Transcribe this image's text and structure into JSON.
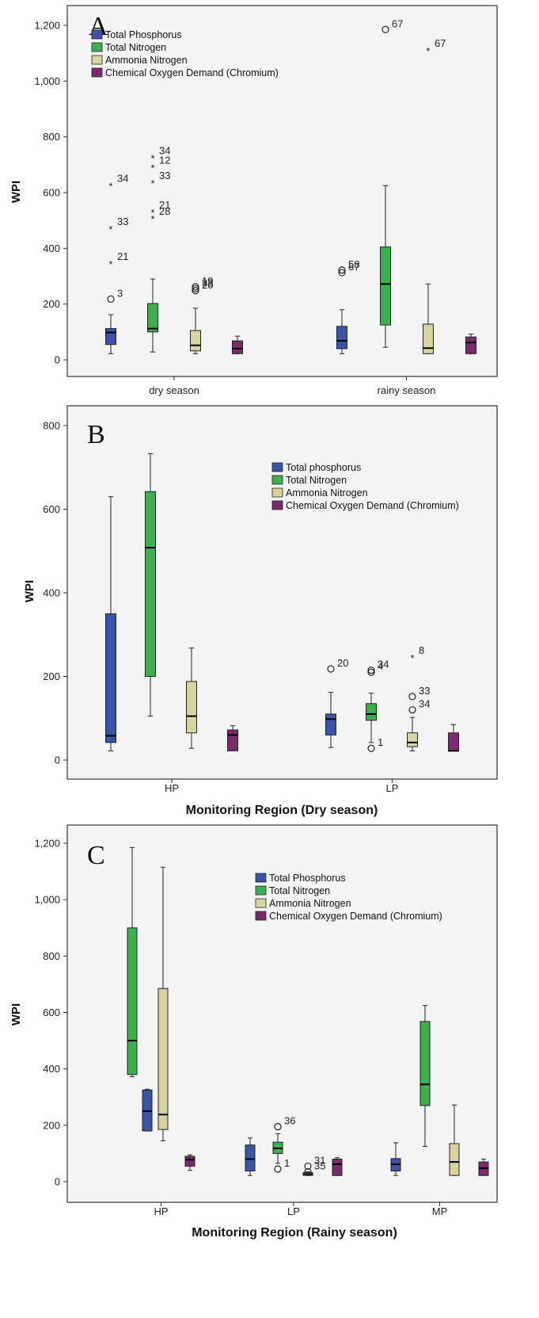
{
  "colors": {
    "total_phosphorus": "#3a55a8",
    "total_nitrogen": "#3cb04a",
    "ammonia_nitrogen": "#d8d4a0",
    "cod_chromium": "#7b2a6e",
    "frame": "#333333",
    "panel_bg": "#f4f4f4"
  },
  "chart_data": [
    {
      "type": "box",
      "panel_letter": "A",
      "xlabel": "",
      "ylabel": "WPI",
      "ylim": [
        -40,
        1240
      ],
      "yticks": [
        0,
        200,
        400,
        600,
        800,
        1000,
        1200
      ],
      "ytick_labels": [
        "0",
        "200",
        "400",
        "600",
        "800",
        "1,000",
        "1,200"
      ],
      "legend_position": "top-left",
      "legend": [
        "Total Phosphorus",
        "Total Nitrogen",
        "Ammonia Nitrogen",
        "Chemical Oxygen Demand (Chromium)"
      ],
      "categories": [
        "dry season",
        "rainy season"
      ],
      "series": [
        {
          "name": "Total Phosphorus",
          "boxes": [
            {
              "min": 22,
              "q1": 55,
              "median": 98,
              "q3": 112,
              "max": 162,
              "outliers": [
                {
                  "y": 218,
                  "label": "3",
                  "marker": "o"
                },
                {
                  "y": 350,
                  "label": "21",
                  "marker": "*"
                },
                {
                  "y": 475,
                  "label": "33",
                  "marker": "*"
                },
                {
                  "y": 630,
                  "label": "34",
                  "marker": "*"
                }
              ]
            },
            {
              "min": 22,
              "q1": 40,
              "median": 68,
              "q3": 120,
              "max": 180,
              "outliers": [
                {
                  "y": 322,
                  "label": "58",
                  "marker": "o"
                },
                {
                  "y": 313,
                  "label": "67",
                  "marker": "o"
                }
              ]
            }
          ]
        },
        {
          "name": "Total Nitrogen",
          "boxes": [
            {
              "min": 28,
              "q1": 100,
              "median": 112,
              "q3": 202,
              "max": 290,
              "outliers": [
                {
                  "y": 512,
                  "label": "28",
                  "marker": "*"
                },
                {
                  "y": 535,
                  "label": "21",
                  "marker": "*"
                },
                {
                  "y": 640,
                  "label": "33",
                  "marker": "*"
                },
                {
                  "y": 695,
                  "label": "12",
                  "marker": "*"
                },
                {
                  "y": 730,
                  "label": "34",
                  "marker": "*"
                }
              ]
            },
            {
              "min": 45,
              "q1": 125,
              "median": 272,
              "q3": 405,
              "max": 625,
              "outliers": [
                {
                  "y": 1185,
                  "label": "67",
                  "marker": "o"
                }
              ]
            }
          ]
        },
        {
          "name": "Ammonia Nitrogen",
          "boxes": [
            {
              "min": 22,
              "q1": 32,
              "median": 52,
              "q3": 105,
              "max": 185,
              "outliers": [
                {
                  "y": 248,
                  "label": "20",
                  "marker": "o"
                },
                {
                  "y": 262,
                  "label": "19",
                  "marker": "o"
                },
                {
                  "y": 255,
                  "label": "33",
                  "marker": "o"
                }
              ]
            },
            {
              "min": 22,
              "q1": 22,
              "median": 42,
              "q3": 128,
              "max": 272,
              "outliers": [
                {
                  "y": 1115,
                  "label": "67",
                  "marker": "*"
                }
              ]
            }
          ]
        },
        {
          "name": "Chemical Oxygen Demand (Chromium)",
          "boxes": [
            {
              "min": 22,
              "q1": 22,
              "median": 40,
              "q3": 68,
              "max": 85,
              "outliers": []
            },
            {
              "min": 22,
              "q1": 22,
              "median": 62,
              "q3": 82,
              "max": 92,
              "outliers": []
            }
          ]
        }
      ]
    },
    {
      "type": "box",
      "panel_letter": "B",
      "xlabel": "Monitoring Region (Dry season)",
      "ylabel": "WPI",
      "ylim": [
        -40,
        840
      ],
      "yticks": [
        0,
        200,
        400,
        600,
        800
      ],
      "ytick_labels": [
        "0",
        "200",
        "400",
        "600",
        "800"
      ],
      "legend_position": "top-right",
      "legend": [
        "Total phosphorus",
        "Total Nitrogen",
        "Ammonia Nitrogen",
        "Chemical Oxygen Demand (Chromium)"
      ],
      "categories": [
        "HP",
        "LP"
      ],
      "series": [
        {
          "name": "Total phosphorus",
          "boxes": [
            {
              "min": 22,
              "q1": 42,
              "median": 58,
              "q3": 350,
              "max": 630,
              "outliers": []
            },
            {
              "min": 30,
              "q1": 60,
              "median": 98,
              "q3": 110,
              "max": 162,
              "outliers": [
                {
                  "y": 218,
                  "label": "20",
                  "marker": "o"
                }
              ]
            }
          ]
        },
        {
          "name": "Total Nitrogen",
          "boxes": [
            {
              "min": 105,
              "q1": 200,
              "median": 508,
              "q3": 642,
              "max": 733,
              "outliers": []
            },
            {
              "min": 42,
              "q1": 95,
              "median": 110,
              "q3": 135,
              "max": 160,
              "outliers": [
                {
                  "y": 28,
                  "label": "1",
                  "marker": "o"
                },
                {
                  "y": 210,
                  "label": "4",
                  "marker": "o"
                },
                {
                  "y": 215,
                  "label": "34",
                  "marker": "o"
                }
              ]
            }
          ]
        },
        {
          "name": "Ammonia Nitrogen",
          "boxes": [
            {
              "min": 28,
              "q1": 65,
              "median": 105,
              "q3": 188,
              "max": 268,
              "outliers": []
            },
            {
              "min": 22,
              "q1": 32,
              "median": 42,
              "q3": 65,
              "max": 102,
              "outliers": [
                {
                  "y": 120,
                  "label": "34",
                  "marker": "o"
                },
                {
                  "y": 152,
                  "label": "33",
                  "marker": "o"
                },
                {
                  "y": 248,
                  "label": "8",
                  "marker": "*"
                }
              ]
            }
          ]
        },
        {
          "name": "Chemical Oxygen Demand (Chromium)",
          "boxes": [
            {
              "min": 22,
              "q1": 22,
              "median": 60,
              "q3": 72,
              "max": 82,
              "outliers": []
            },
            {
              "min": 22,
              "q1": 22,
              "median": 22,
              "q3": 65,
              "max": 85,
              "outliers": []
            }
          ]
        }
      ]
    },
    {
      "type": "box",
      "panel_letter": "C",
      "xlabel": "Monitoring Region (Rainy season)",
      "ylabel": "WPI",
      "ylim": [
        -60,
        1260
      ],
      "yticks": [
        0,
        200,
        400,
        600,
        800,
        1000,
        1200
      ],
      "ytick_labels": [
        "0",
        "200",
        "400",
        "600",
        "800",
        "1,000",
        "1,200"
      ],
      "legend_position": "top-right",
      "legend": [
        "Total Phosphorus",
        "Total Nitrogen",
        "Ammonia Nitrogen",
        "Chemical Oxygen Demand (Chromium)"
      ],
      "categories": [
        "HP",
        "LP",
        "MP"
      ],
      "series": [
        {
          "name": "Total Phosphorus",
          "boxes": [
            {
              "min": 180,
              "q1": 180,
              "median": 250,
              "q3": 325,
              "max": 328,
              "outliers": []
            },
            {
              "min": 22,
              "q1": 38,
              "median": 80,
              "q3": 130,
              "max": 155,
              "outliers": []
            },
            {
              "min": 22,
              "q1": 38,
              "median": 62,
              "q3": 82,
              "max": 138,
              "outliers": []
            }
          ]
        },
        {
          "name": "Total Nitrogen",
          "boxes": [
            {
              "min": 372,
              "q1": 380,
              "median": 500,
              "q3": 900,
              "max": 1185,
              "outliers": []
            },
            {
              "min": 65,
              "q1": 100,
              "median": 118,
              "q3": 140,
              "max": 170,
              "outliers": [
                {
                  "y": 195,
                  "label": "36",
                  "marker": "o"
                },
                {
                  "y": 45,
                  "label": "1",
                  "marker": "o"
                }
              ]
            },
            {
              "min": 125,
              "q1": 270,
              "median": 345,
              "q3": 568,
              "max": 625,
              "outliers": []
            }
          ]
        },
        {
          "name": "Ammonia Nitrogen",
          "boxes": [
            {
              "min": 145,
              "q1": 185,
              "median": 238,
              "q3": 685,
              "max": 1115,
              "outliers": []
            },
            {
              "min": 22,
              "q1": 22,
              "median": 27,
              "q3": 32,
              "max": 35,
              "outliers": [
                {
                  "y": 55,
                  "label": "31",
                  "marker": "o"
                },
                {
                  "y": 35,
                  "label": "35",
                  "marker": "o"
                }
              ]
            },
            {
              "min": 22,
              "q1": 22,
              "median": 70,
              "q3": 135,
              "max": 272,
              "outliers": []
            }
          ]
        },
        {
          "name": "Chemical Oxygen Demand (Chromium)",
          "boxes": [
            {
              "min": 40,
              "q1": 55,
              "median": 78,
              "q3": 90,
              "max": 95,
              "outliers": []
            },
            {
              "min": 22,
              "q1": 22,
              "median": 62,
              "q3": 80,
              "max": 85,
              "outliers": []
            },
            {
              "min": 22,
              "q1": 22,
              "median": 48,
              "q3": 70,
              "max": 80,
              "outliers": []
            }
          ]
        }
      ]
    }
  ]
}
